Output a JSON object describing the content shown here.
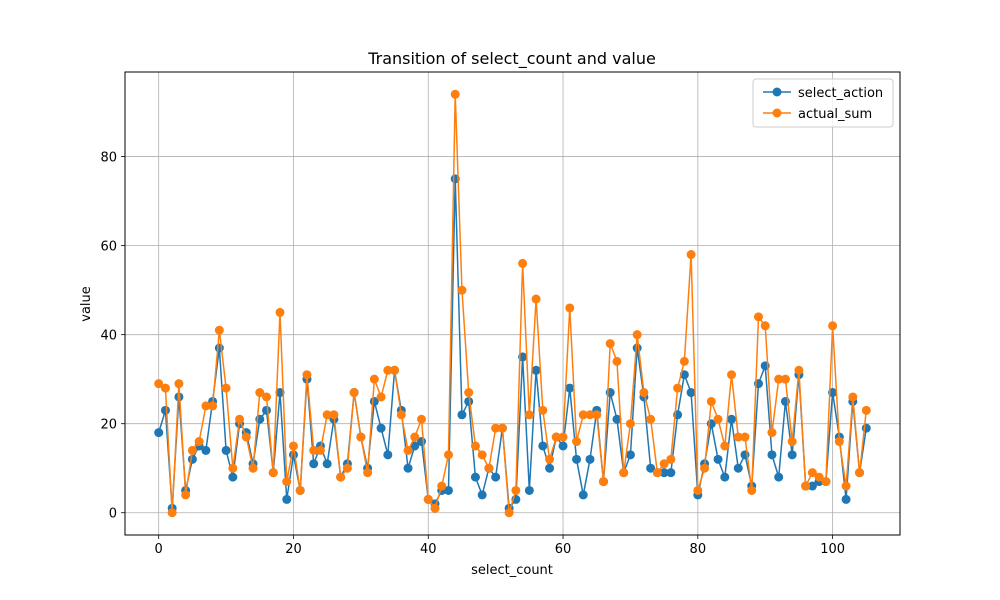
{
  "chart_data": {
    "type": "line",
    "title": "Transition of select_count and value",
    "xlabel": "select_count",
    "ylabel": "value",
    "xlim": [
      -5,
      110
    ],
    "ylim": [
      -5,
      99
    ],
    "xticks": [
      0,
      20,
      40,
      60,
      80,
      100
    ],
    "yticks": [
      0,
      20,
      40,
      60,
      80
    ],
    "grid": true,
    "legend_position": "top-right",
    "series": [
      {
        "name": "select_action",
        "color": "#1f77b4",
        "values": [
          18,
          23,
          1,
          26,
          5,
          12,
          15,
          14,
          25,
          37,
          14,
          8,
          20,
          18,
          11,
          21,
          23,
          9,
          27,
          3,
          13,
          5,
          30,
          11,
          15,
          11,
          21,
          8,
          11,
          27,
          17,
          10,
          25,
          19,
          13,
          32,
          23,
          10,
          15,
          16,
          3,
          2,
          5,
          5,
          75,
          22,
          25,
          8,
          4,
          10,
          8,
          19,
          1,
          3,
          35,
          5,
          32,
          15,
          10,
          17,
          15,
          28,
          12,
          4,
          12,
          23,
          7,
          27,
          21,
          9,
          13,
          37,
          26,
          10,
          9,
          9,
          9,
          22,
          31,
          27,
          4,
          11,
          20,
          12,
          8,
          21,
          10,
          13,
          6,
          29,
          33,
          13,
          8,
          25,
          13,
          31,
          6,
          6,
          7,
          7,
          27,
          17,
          3,
          25,
          9,
          19
        ]
      },
      {
        "name": "actual_sum",
        "color": "#ff7f0e",
        "values": [
          29,
          28,
          0,
          29,
          4,
          14,
          16,
          24,
          24,
          41,
          28,
          10,
          21,
          17,
          10,
          27,
          26,
          9,
          45,
          7,
          15,
          5,
          31,
          14,
          14,
          22,
          22,
          8,
          10,
          27,
          17,
          9,
          30,
          26,
          32,
          32,
          22,
          14,
          17,
          21,
          3,
          1,
          6,
          13,
          94,
          50,
          27,
          15,
          13,
          10,
          19,
          19,
          0,
          5,
          56,
          22,
          48,
          23,
          12,
          17,
          17,
          46,
          16,
          22,
          22,
          22,
          7,
          38,
          34,
          9,
          20,
          40,
          27,
          21,
          9,
          11,
          12,
          28,
          34,
          58,
          5,
          10,
          25,
          21,
          15,
          31,
          17,
          17,
          5,
          44,
          42,
          18,
          30,
          30,
          16,
          32,
          6,
          9,
          8,
          7,
          42,
          16,
          6,
          26,
          9,
          23
        ]
      }
    ]
  }
}
